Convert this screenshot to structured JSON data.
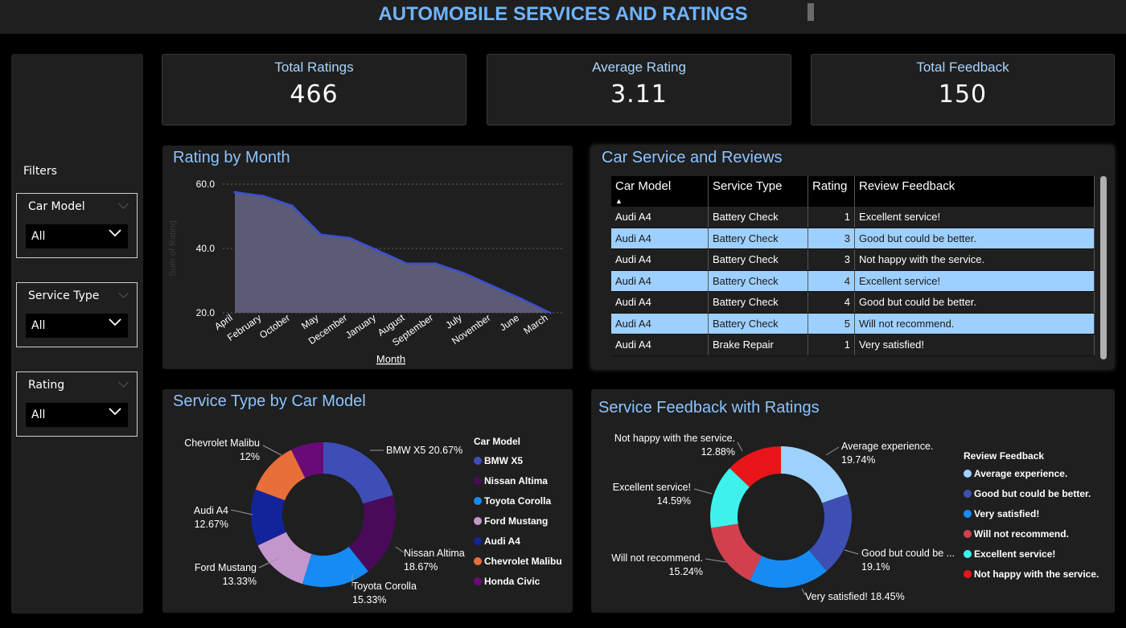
{
  "header": {
    "title": "AUTOMOBILE SERVICES AND RATINGS"
  },
  "filters": {
    "title": "Filters",
    "slicers": [
      {
        "label": "Car Model",
        "value": "All"
      },
      {
        "label": "Service Type",
        "value": "All"
      },
      {
        "label": "Rating",
        "value": "All"
      }
    ]
  },
  "cards": [
    {
      "title": "Total Ratings",
      "value": "466"
    },
    {
      "title": "Average Rating",
      "value": "3.11"
    },
    {
      "title": "Total Feedback",
      "value": "150"
    }
  ],
  "month_chart": {
    "title": "Rating by Month",
    "chart_data": {
      "type": "area",
      "categories": [
        "April",
        "February",
        "October",
        "May",
        "December",
        "January",
        "August",
        "September",
        "July",
        "November",
        "June",
        "March"
      ],
      "values": [
        57.5,
        56.3,
        53.3,
        44.3,
        43.3,
        39.3,
        35.3,
        35.3,
        32.3,
        28.3,
        24.3,
        20
      ],
      "xlabel": "Month",
      "ylabel": "Sum of Rating",
      "ylim": [
        20,
        60
      ],
      "yticks": [
        "60.0",
        "40.0",
        "20.0"
      ],
      "color": "#5b5b78",
      "line_color": "#3a4fd0"
    }
  },
  "table": {
    "title": "Car Service and Reviews",
    "columns": [
      "Car Model",
      "Service Type",
      "Rating",
      "Review Feedback"
    ],
    "rows": [
      [
        "Audi A4",
        "Battery Check",
        "1",
        "Excellent service!"
      ],
      [
        "Audi A4",
        "Battery Check",
        "3",
        "Good but could be better."
      ],
      [
        "Audi A4",
        "Battery Check",
        "3",
        "Not happy with the service."
      ],
      [
        "Audi A4",
        "Battery Check",
        "4",
        "Excellent service!"
      ],
      [
        "Audi A4",
        "Battery Check",
        "4",
        "Good but could be better."
      ],
      [
        "Audi A4",
        "Battery Check",
        "5",
        "Will not recommend."
      ],
      [
        "Audi A4",
        "Brake Repair",
        "1",
        "Very satisfied!"
      ]
    ]
  },
  "service_chart": {
    "title": "Service Type by Car Model",
    "legend_title": "Car Model",
    "chart_data": {
      "type": "pie",
      "slices": [
        {
          "name": "BMW X5",
          "value": 20.67,
          "label": "BMW X5 20.67%",
          "color": "#3f4db7"
        },
        {
          "name": "Nissan Altima",
          "value": 18.67,
          "label": "Nissan Altima",
          "pct": "18.67%",
          "color": "#4a0a5a"
        },
        {
          "name": "Toyota Corolla",
          "value": 15.33,
          "label": "Toyota Corolla",
          "pct": "15.33%",
          "color": "#148bf5"
        },
        {
          "name": "Ford Mustang",
          "value": 13.33,
          "label": "Ford Mustang",
          "pct": "13.33%",
          "color": "#c497cc"
        },
        {
          "name": "Audi A4",
          "value": 12.67,
          "label": "Audi A4",
          "pct": "12.67%",
          "color": "#13239a"
        },
        {
          "name": "Chevrolet Malibu",
          "value": 12.0,
          "label": "Chevrolet Malibu",
          "pct": "12%",
          "color": "#e86e3a"
        },
        {
          "name": "Honda Civic",
          "value": 7.33,
          "label": "",
          "pct": "",
          "color": "#6a0a78"
        }
      ]
    }
  },
  "feedback_chart": {
    "title": "Service Feedback with Ratings",
    "legend_title": "Review Feedback",
    "chart_data": {
      "type": "pie",
      "slices": [
        {
          "name": "Average experience.",
          "value": 19.74,
          "label": "Average experience.",
          "pct": "19.74%",
          "color": "#9fd1ff"
        },
        {
          "name": "Good but could be better.",
          "value": 19.1,
          "label": "Good but could be ...",
          "pct": "19.1%",
          "color": "#3d4fb2"
        },
        {
          "name": "Very satisfied!",
          "value": 18.45,
          "label": "Very satisfied! 18.45%",
          "pct": "",
          "color": "#168bf4"
        },
        {
          "name": "Will not recommend.",
          "value": 15.24,
          "label": "Will not recommend.",
          "pct": "15.24%",
          "color": "#d2404e"
        },
        {
          "name": "Excellent service!",
          "value": 14.59,
          "label": "Excellent service!",
          "pct": "14.59%",
          "color": "#3ef2ec"
        },
        {
          "name": "Not happy with the service.",
          "value": 12.88,
          "label": "Not happy with the service.",
          "pct": "12.88%",
          "color": "#e9151a"
        }
      ]
    }
  }
}
